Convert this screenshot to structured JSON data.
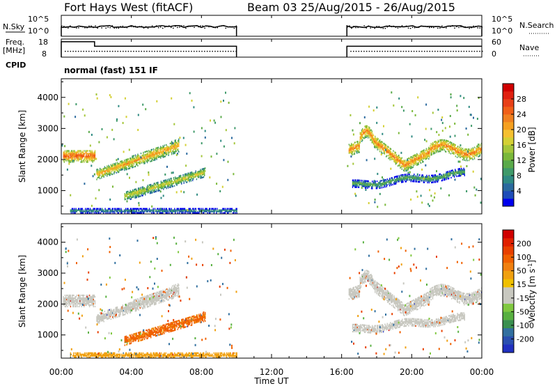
{
  "header": {
    "station": "Fort Hays West (fitACF)",
    "beam": "Beam 03 25/Aug/2015 - 26/Aug/2015"
  },
  "labels": {
    "nsky": "N.Sky",
    "nsearch": "N.Search",
    "nsky_hi": "10^5",
    "nsky_lo": "10^0",
    "freq": "Freq.",
    "mhz": "[MHz]",
    "freq_hi": "18",
    "freq_lo": "8",
    "nave": "Nave",
    "nave_hi": "60",
    "nave_lo": "0",
    "cpid": "CPID",
    "mode": "normal (fast) 151 IF",
    "power_title": "Power [dB]",
    "velocity_title": "Velocity [m s",
    "velocity_exp": "-1",
    "velocity_close": "]"
  },
  "colors": {
    "power": [
      "#0000ee",
      "#1e4db8",
      "#2b6a9e",
      "#2f8a82",
      "#3f9a6a",
      "#5aaa4a",
      "#7ab83a",
      "#a4c63a",
      "#d4d035",
      "#f5c030",
      "#f5a020",
      "#f08020",
      "#f06018",
      "#e84018",
      "#e02010",
      "#d00000"
    ],
    "velocity": [
      "#2030c0",
      "#2a4fb0",
      "#3270a0",
      "#3a9050",
      "#58b040",
      "#80c840",
      "#c8c8c0",
      "#c8c8c0",
      "#f0c000",
      "#f0a010",
      "#f08010",
      "#f06000",
      "#e84000",
      "#e02000",
      "#d00000"
    ],
    "ground": "#c8c8c0"
  },
  "chart_data": [
    {
      "type": "heatmap",
      "title": "Power",
      "ylabel": "Slant Range [km]",
      "xlabel": "",
      "x_range": [
        0,
        24
      ],
      "ylim": [
        250,
        4600
      ],
      "y_ticks": [
        1000,
        2000,
        3000,
        4000
      ],
      "colorbar": {
        "label": "Power [dB]",
        "range": [
          0,
          32
        ],
        "ticks": [
          4,
          8,
          12,
          16,
          20,
          24,
          28
        ]
      },
      "data_gaps": [
        [
          10.0,
          16.3
        ]
      ],
      "bands": [
        {
          "name": "pre-midnight",
          "x": [
            0.1,
            1.9
          ],
          "range_km": [
            1850,
            2350
          ],
          "power_db": 26
        },
        {
          "name": "rising arc upper",
          "x": [
            2.0,
            6.7
          ],
          "range_km": [
            1550,
            2550
          ],
          "power_db": 22
        },
        {
          "name": "rising arc lower",
          "x": [
            3.6,
            8.2
          ],
          "range_km": [
            700,
            1650
          ],
          "power_db": 18
        },
        {
          "name": "morning ground",
          "x": [
            0.5,
            10.0
          ],
          "range_km": [
            250,
            450
          ],
          "power_db": 10
        },
        {
          "name": "evening main",
          "x": [
            16.4,
            24.0
          ],
          "range_km": [
            1850,
            2750
          ],
          "power_db": 24
        },
        {
          "name": "evening lower",
          "x": [
            16.6,
            23.0
          ],
          "range_km": [
            950,
            1450
          ],
          "power_db": 12
        }
      ]
    },
    {
      "type": "heatmap",
      "title": "Velocity",
      "ylabel": "Slant Range [km]",
      "xlabel": "Time UT",
      "x_range": [
        0,
        24
      ],
      "x_ticks": [
        "00:00",
        "04:00",
        "08:00",
        "12:00",
        "16:00",
        "20:00",
        "00:00"
      ],
      "ylim": [
        250,
        4600
      ],
      "y_ticks": [
        1000,
        2000,
        3000,
        4000
      ],
      "colorbar": {
        "label": "Velocity [m s^-1]",
        "ticks": [
          200,
          100,
          50,
          15,
          -15,
          -50,
          -100,
          -200
        ]
      },
      "data_gaps": [
        [
          10.0,
          16.3
        ]
      ],
      "bands": [
        {
          "name": "pre-midnight",
          "x": [
            0.1,
            1.9
          ],
          "range_km": [
            1850,
            2350
          ],
          "velocity": 0
        },
        {
          "name": "rising arc upper",
          "x": [
            2.0,
            6.7
          ],
          "range_km": [
            1550,
            2550
          ],
          "velocity": 0
        },
        {
          "name": "rising arc lower",
          "x": [
            3.6,
            8.2
          ],
          "range_km": [
            700,
            1650
          ],
          "velocity": -60
        },
        {
          "name": "morning ground",
          "x": [
            0.5,
            10.0
          ],
          "range_km": [
            250,
            450
          ],
          "velocity": -30
        },
        {
          "name": "evening main",
          "x": [
            16.4,
            24.0
          ],
          "range_km": [
            1850,
            2750
          ],
          "velocity": 0
        },
        {
          "name": "evening lower",
          "x": [
            16.6,
            23.0
          ],
          "range_km": [
            950,
            1450
          ],
          "velocity": 0
        }
      ]
    }
  ],
  "status": {
    "nsky_level": 0.75,
    "freq_step_time": 1.9,
    "freq_level_before": 0.85,
    "freq_level_after": 0.6
  }
}
